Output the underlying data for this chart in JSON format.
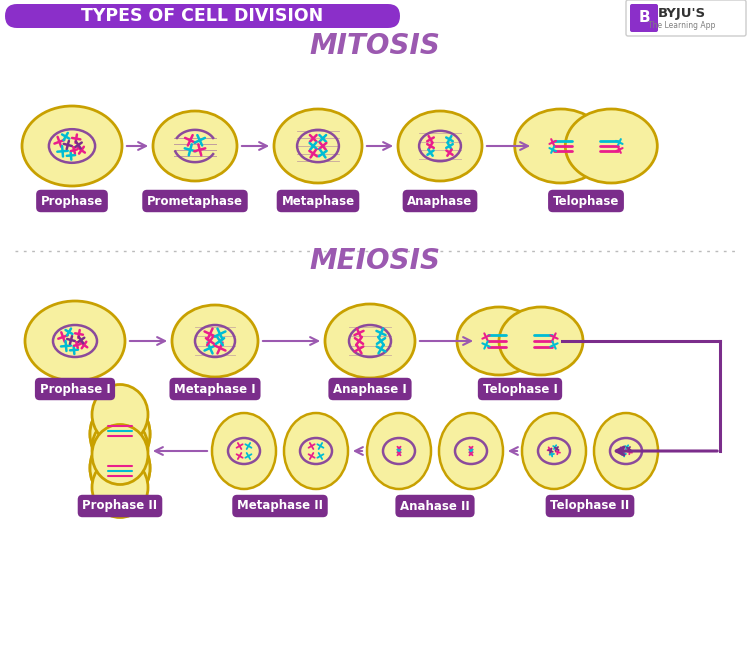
{
  "title": "TYPES OF CELL DIVISION",
  "title_bg": "#8B2FC9",
  "bg_color": "#FFFFFF",
  "mitosis_title": "MITOSIS",
  "meiosis_title": "MEIOSIS",
  "section_title_color": "#9B59B0",
  "cell_fill": "#F7F0A0",
  "cell_edge": "#C8A800",
  "label_bg": "#7B2D8B",
  "label_fg": "#FFFFFF",
  "arrow_color": "#9B59B0",
  "bracket_color": "#7B2D8B",
  "mitosis_labels": [
    "Prophase",
    "Prometaphase",
    "Metaphase",
    "Anaphase",
    "Telophase"
  ],
  "meiosis_row1_labels": [
    "Prophase I",
    "Metaphase I",
    "Anaphase I",
    "Telophase I"
  ],
  "meiosis_row2_labels": [
    "Telophase II",
    "Anahase II",
    "Metaphase II",
    "Prophase II"
  ],
  "pink": "#E91E8C",
  "teal": "#00BCD4",
  "purple_chr": "#7B2D8B",
  "nucleus_color": "#8B4A9C",
  "dotted_line_color": "#BBBBBB",
  "cell_edge_color": "#C8A000"
}
